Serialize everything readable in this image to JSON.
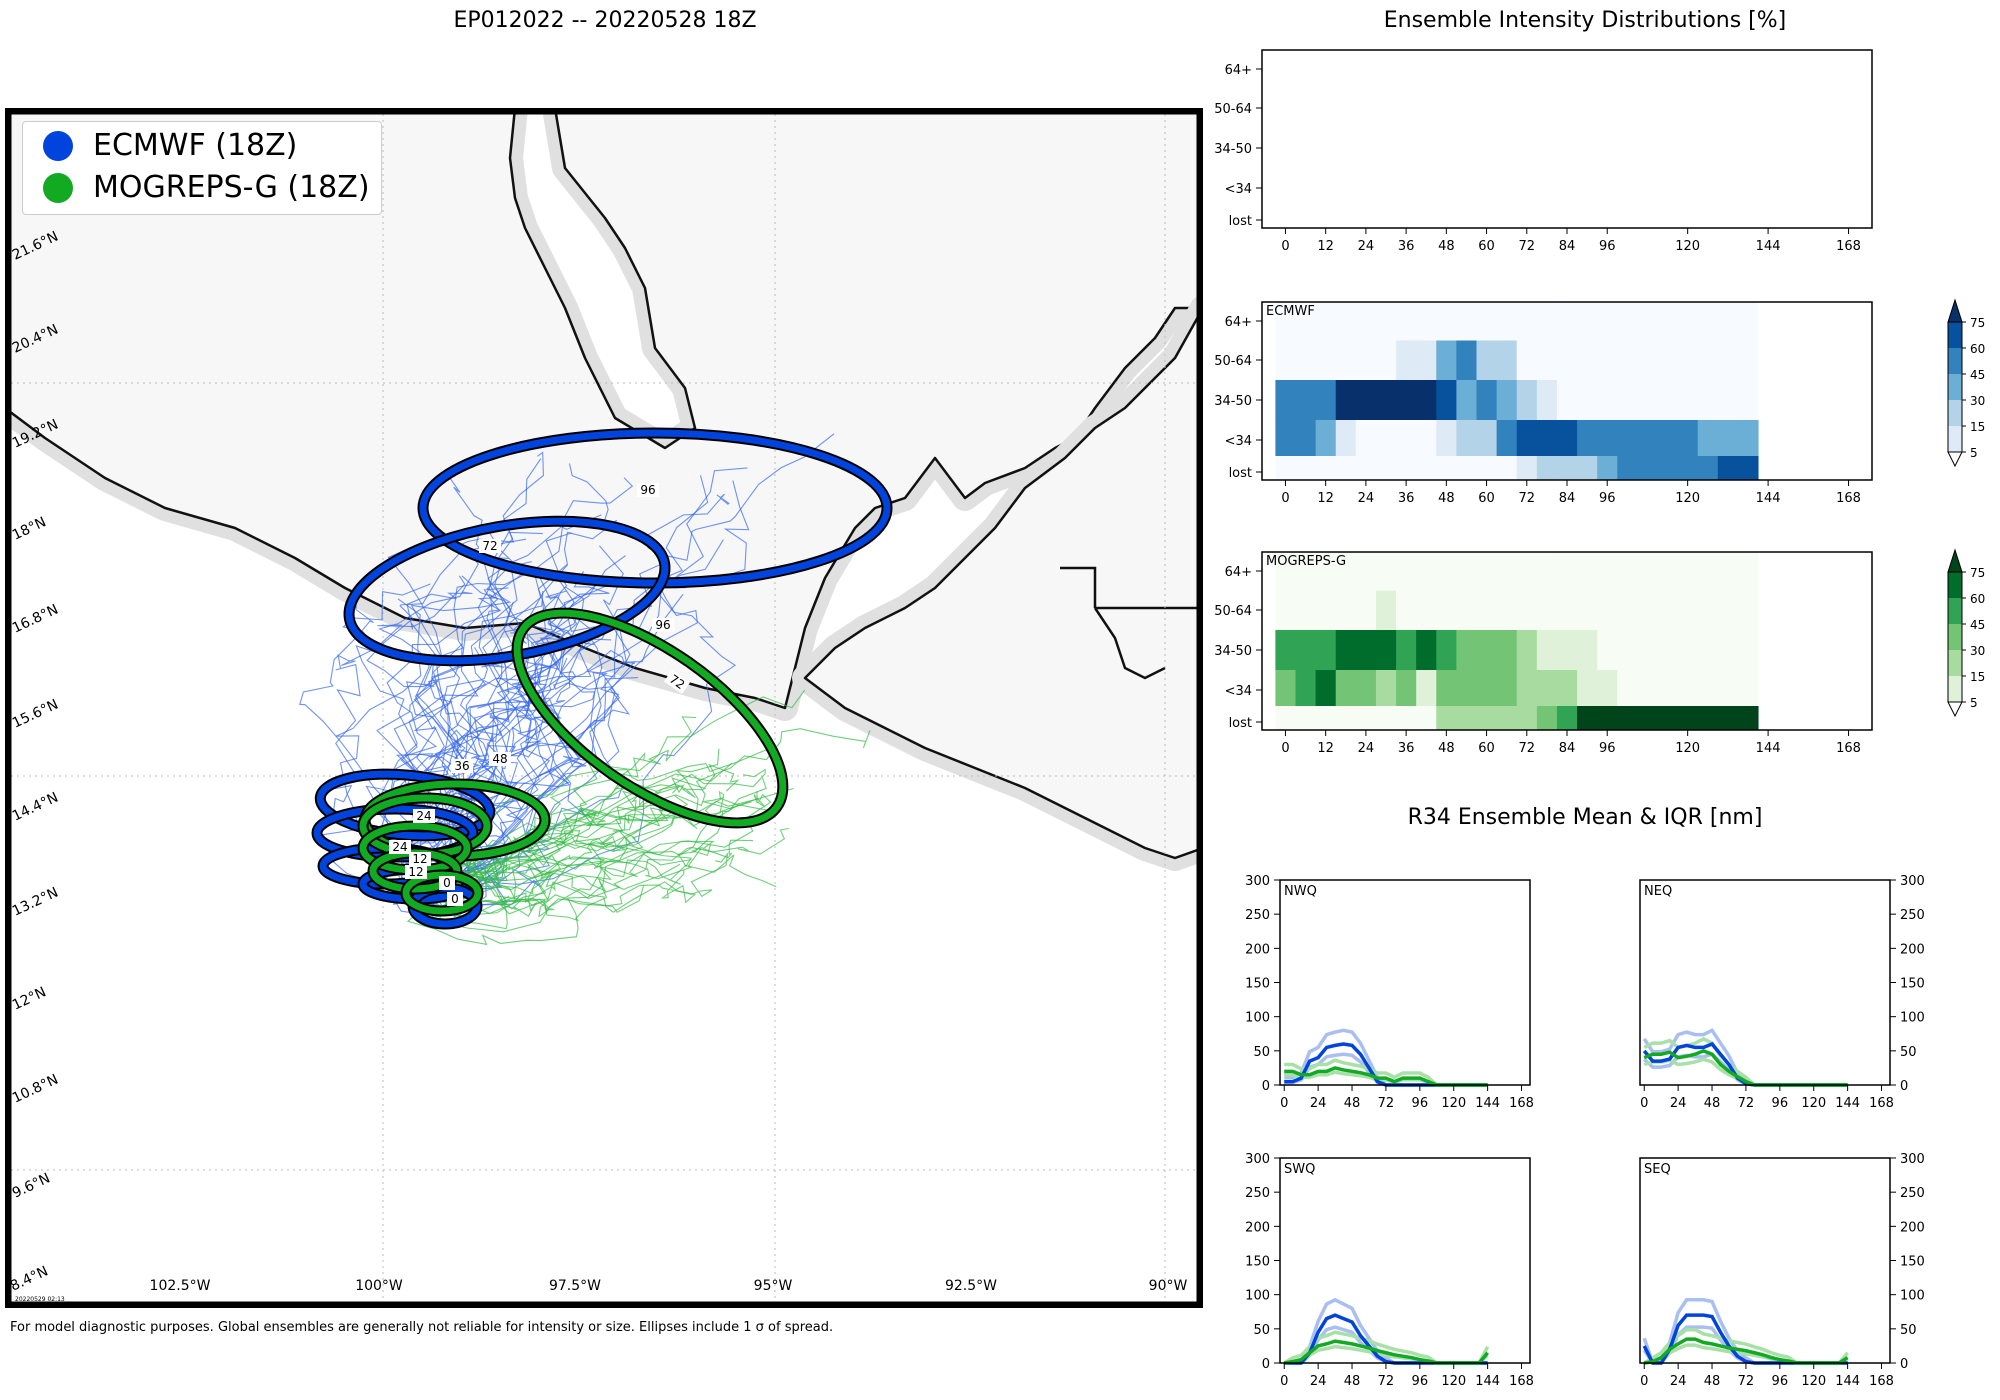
{
  "main_title": "EP012022 -- 20220528 18Z",
  "footnote": "For model diagnostic purposes. Global ensembles are generally not reliable for intensity or size. Ellipses include 1 σ of spread.",
  "colors": {
    "ecmwf": "#0044dd",
    "mogreps": "#11aa22",
    "land": "#f7f7f7",
    "coast_halo": "#c8c8c8"
  },
  "map": {
    "legend": [
      {
        "label": "ECMWF (18Z)",
        "color": "#0044dd"
      },
      {
        "label": "MOGREPS-G (18Z)",
        "color": "#11aa22"
      }
    ],
    "lon_labels": [
      "102.5°W",
      "100°W",
      "97.5°W",
      "95°W",
      "92.5°W",
      "90°W"
    ],
    "lat_labels": [
      "21.6°N",
      "20.4°N",
      "19.2°N",
      "18°N",
      "16.8°N",
      "15.6°N",
      "14.4°N",
      "13.2°N",
      "12°N",
      "10.8°N",
      "9.6°N",
      "8.4°N"
    ],
    "stamp": "20220529 02:13",
    "ellipse_labels": {
      "ecmwf": [
        "96",
        "72",
        "96",
        "48",
        "36",
        "24",
        "12",
        "0"
      ],
      "mogreps": [
        "72",
        "48",
        "36",
        "24",
        "12",
        "0"
      ]
    }
  },
  "chart_data": [
    {
      "type": "heatmap",
      "title": "Ensemble Intensity Distributions [%]",
      "panels": [
        {
          "name": "",
          "rows": [],
          "values": []
        },
        {
          "name": "ECMWF",
          "colormap": "blues",
          "note": "values in % per 6h bin",
          "rows": [
            "64+",
            "50-64",
            "34-50",
            "<34",
            "lost"
          ],
          "x_bins_hours": [
            0,
            6,
            12,
            18,
            24,
            30,
            36,
            42,
            48,
            54,
            60,
            66,
            72,
            78,
            84,
            90,
            96,
            102,
            108,
            114,
            120,
            126,
            132,
            138
          ],
          "values": [
            [
              3,
              3,
              3,
              3,
              3,
              3,
              3,
              3,
              3,
              3,
              3,
              3,
              3,
              3,
              3,
              3,
              3,
              3,
              3,
              3,
              3,
              3,
              3,
              3
            ],
            [
              3,
              3,
              3,
              3,
              3,
              3,
              8,
              8,
              30,
              45,
              15,
              15,
              3,
              3,
              3,
              3,
              3,
              3,
              3,
              3,
              3,
              3,
              3,
              3
            ],
            [
              45,
              45,
              45,
              80,
              80,
              80,
              80,
              80,
              60,
              30,
              45,
              30,
              15,
              8,
              3,
              3,
              3,
              3,
              3,
              3,
              3,
              3,
              3,
              3
            ],
            [
              45,
              45,
              30,
              8,
              3,
              3,
              3,
              3,
              8,
              15,
              15,
              45,
              60,
              60,
              60,
              45,
              45,
              45,
              45,
              45,
              45,
              30,
              30,
              30
            ],
            [
              3,
              3,
              3,
              3,
              3,
              3,
              3,
              3,
              3,
              3,
              3,
              3,
              8,
              15,
              15,
              15,
              30,
              45,
              45,
              45,
              45,
              45,
              60,
              60
            ]
          ]
        },
        {
          "name": "MOGREPS-G",
          "colormap": "greens",
          "rows": [
            "64+",
            "50-64",
            "34-50",
            "<34",
            "lost"
          ],
          "x_bins_hours": [
            0,
            6,
            12,
            18,
            24,
            30,
            36,
            42,
            48,
            54,
            60,
            66,
            72,
            78,
            84,
            90,
            96,
            102,
            108,
            114,
            120,
            126,
            132,
            138
          ],
          "values": [
            [
              3,
              3,
              3,
              3,
              3,
              3,
              3,
              3,
              3,
              3,
              3,
              3,
              3,
              3,
              3,
              3,
              3,
              3,
              3,
              3,
              3,
              3,
              3,
              3
            ],
            [
              3,
              3,
              3,
              3,
              3,
              8,
              3,
              3,
              3,
              3,
              3,
              3,
              3,
              3,
              3,
              3,
              3,
              3,
              3,
              3,
              3,
              3,
              3,
              3
            ],
            [
              45,
              45,
              45,
              60,
              60,
              60,
              45,
              60,
              45,
              30,
              30,
              30,
              15,
              8,
              8,
              8,
              3,
              3,
              3,
              3,
              3,
              3,
              3,
              3
            ],
            [
              30,
              45,
              60,
              30,
              30,
              15,
              30,
              8,
              30,
              30,
              30,
              30,
              15,
              15,
              15,
              8,
              8,
              3,
              3,
              3,
              3,
              3,
              3,
              3
            ],
            [
              3,
              3,
              3,
              3,
              3,
              3,
              3,
              3,
              15,
              15,
              15,
              15,
              15,
              30,
              45,
              75,
              75,
              75,
              75,
              75,
              75,
              75,
              75,
              75
            ]
          ]
        }
      ],
      "x_ticks": [
        0,
        12,
        24,
        36,
        48,
        60,
        72,
        84,
        96,
        120,
        144,
        168
      ],
      "colorbar_ticks": [
        5,
        15,
        30,
        45,
        60,
        75
      ]
    },
    {
      "type": "line",
      "title": "R34 Ensemble Mean & IQR [nm]",
      "x_ticks": [
        0,
        24,
        48,
        72,
        96,
        120,
        144,
        168
      ],
      "ylim": [
        0,
        300
      ],
      "y_ticks": [
        0,
        50,
        100,
        150,
        200,
        250,
        300
      ],
      "xlim": [
        -3,
        174
      ],
      "panels": [
        {
          "name": "NWQ",
          "series": [
            {
              "name": "ECMWF",
              "x": [
                0,
                6,
                12,
                18,
                24,
                30,
                36,
                42,
                48,
                54,
                60,
                66,
                72,
                78,
                84,
                90,
                96,
                102,
                108,
                114,
                120,
                126,
                132,
                138,
                144
              ],
              "y": [
                5,
                5,
                10,
                35,
                40,
                55,
                58,
                60,
                58,
                45,
                25,
                5,
                0,
                0,
                0,
                0,
                0,
                0,
                0,
                0,
                0,
                0,
                0,
                0,
                0
              ]
            },
            {
              "name": "MOGREPS-G",
              "x": [
                0,
                6,
                12,
                18,
                24,
                30,
                36,
                42,
                48,
                54,
                60,
                66,
                72,
                78,
                84,
                90,
                96,
                102,
                108,
                114,
                120,
                126,
                132,
                138,
                144
              ],
              "y": [
                20,
                20,
                15,
                15,
                20,
                20,
                25,
                22,
                20,
                18,
                15,
                10,
                10,
                5,
                10,
                10,
                10,
                5,
                0,
                0,
                0,
                0,
                0,
                0,
                0
              ]
            }
          ]
        },
        {
          "name": "NEQ",
          "series": [
            {
              "name": "ECMWF",
              "x": [
                0,
                6,
                12,
                18,
                24,
                30,
                36,
                42,
                48,
                54,
                60,
                66,
                72,
                78,
                84,
                90,
                96,
                102,
                108,
                114,
                120,
                126,
                132,
                138,
                144
              ],
              "y": [
                50,
                35,
                35,
                38,
                55,
                58,
                55,
                55,
                60,
                45,
                30,
                10,
                2,
                0,
                0,
                0,
                0,
                0,
                0,
                0,
                0,
                0,
                0,
                0,
                0
              ]
            },
            {
              "name": "MOGREPS-G",
              "x": [
                0,
                6,
                12,
                18,
                24,
                30,
                36,
                42,
                48,
                54,
                60,
                66,
                72,
                78,
                84,
                90,
                96,
                102,
                108,
                114,
                120,
                126,
                132,
                138,
                144
              ],
              "y": [
                40,
                45,
                45,
                48,
                40,
                42,
                45,
                50,
                45,
                30,
                20,
                12,
                5,
                0,
                0,
                0,
                0,
                0,
                0,
                0,
                0,
                0,
                0,
                0,
                0
              ]
            }
          ]
        },
        {
          "name": "SWQ",
          "series": [
            {
              "name": "ECMWF",
              "x": [
                0,
                6,
                12,
                18,
                24,
                30,
                36,
                42,
                48,
                54,
                60,
                66,
                72,
                78,
                84,
                90,
                96,
                102,
                108,
                114,
                120,
                126,
                132,
                138,
                144
              ],
              "y": [
                0,
                0,
                0,
                15,
                45,
                65,
                70,
                65,
                60,
                40,
                25,
                10,
                2,
                0,
                0,
                0,
                0,
                0,
                0,
                0,
                0,
                0,
                0,
                0,
                0
              ]
            },
            {
              "name": "MOGREPS-G",
              "x": [
                0,
                6,
                12,
                18,
                24,
                30,
                36,
                42,
                48,
                54,
                60,
                66,
                72,
                78,
                84,
                90,
                96,
                102,
                108,
                114,
                120,
                126,
                132,
                138,
                144
              ],
              "y": [
                0,
                2,
                5,
                15,
                25,
                28,
                32,
                30,
                28,
                25,
                22,
                18,
                15,
                12,
                10,
                8,
                5,
                3,
                0,
                0,
                0,
                0,
                0,
                0,
                15
              ]
            }
          ]
        },
        {
          "name": "SEQ",
          "series": [
            {
              "name": "ECMWF",
              "x": [
                0,
                6,
                12,
                18,
                24,
                30,
                36,
                42,
                48,
                54,
                60,
                66,
                72,
                78,
                84,
                90,
                96,
                102,
                108,
                114,
                120,
                126,
                132,
                138,
                144
              ],
              "y": [
                25,
                0,
                0,
                20,
                55,
                70,
                70,
                70,
                68,
                45,
                25,
                10,
                2,
                0,
                0,
                0,
                0,
                0,
                0,
                0,
                0,
                0,
                0,
                0,
                0
              ]
            },
            {
              "name": "MOGREPS-G",
              "x": [
                0,
                6,
                12,
                18,
                24,
                30,
                36,
                42,
                48,
                54,
                60,
                66,
                72,
                78,
                84,
                90,
                96,
                102,
                108,
                114,
                120,
                126,
                132,
                138,
                144
              ],
              "y": [
                0,
                2,
                8,
                20,
                28,
                35,
                35,
                30,
                28,
                25,
                22,
                20,
                18,
                15,
                12,
                8,
                5,
                3,
                0,
                0,
                0,
                0,
                0,
                0,
                8
              ]
            }
          ]
        }
      ]
    }
  ]
}
